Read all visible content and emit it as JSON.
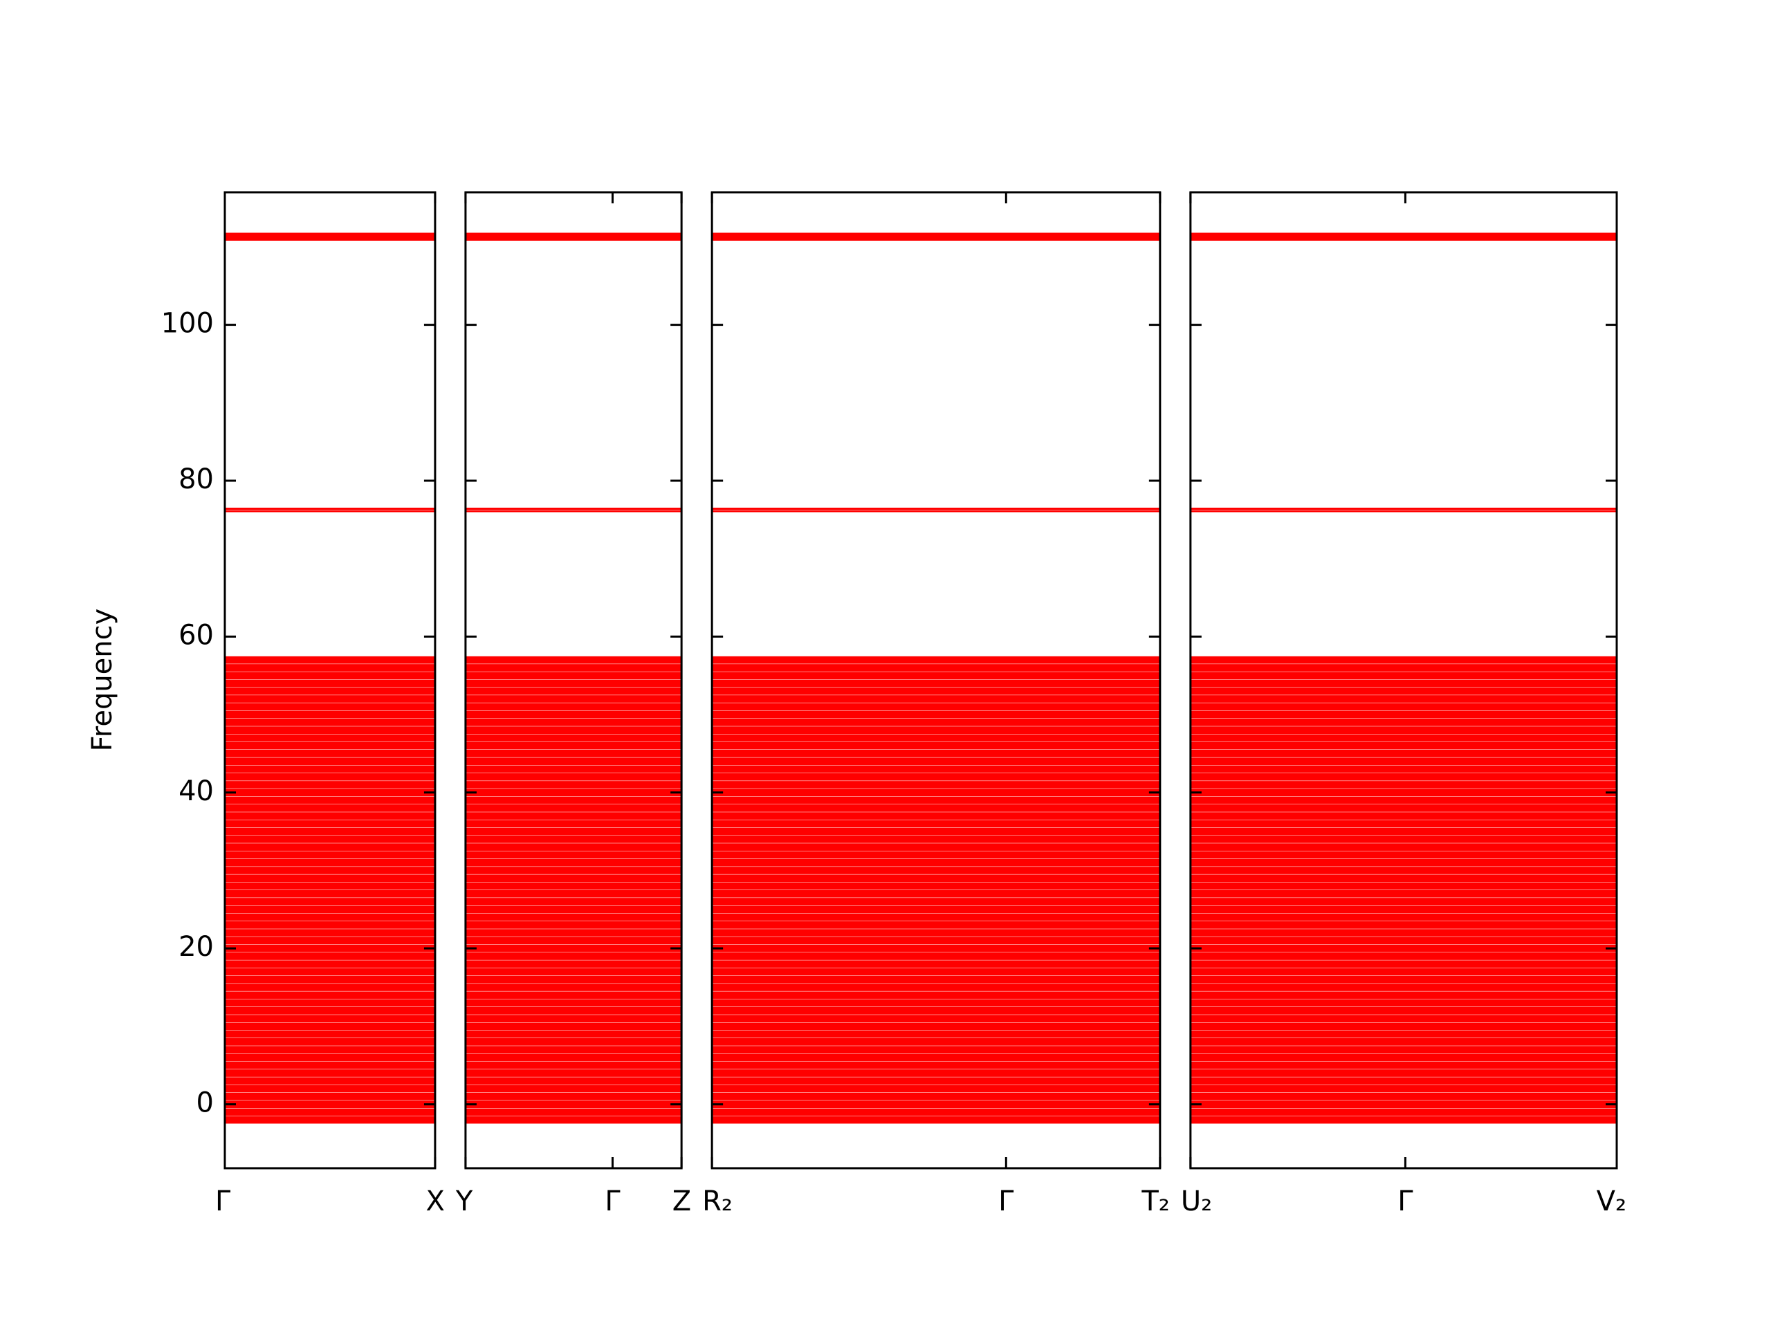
{
  "chart_data": {
    "type": "line",
    "ylabel": "Frequency",
    "color": "#ff0000",
    "ylim": [
      -8.2,
      117
    ],
    "yticks": [
      0,
      20,
      40,
      60,
      80,
      100
    ],
    "panels": [
      {
        "xlim": [
          0,
          1.83
        ],
        "xticks": [
          {
            "value": 0,
            "label": "Γ"
          },
          {
            "value": 1.83,
            "label": "X"
          }
        ]
      },
      {
        "xlim": [
          1.83,
          3.71
        ],
        "xticks": [
          {
            "value": 1.83,
            "label": "Y"
          },
          {
            "value": 3.11,
            "label": "Γ"
          },
          {
            "value": 3.71,
            "label": "Z"
          }
        ]
      },
      {
        "xlim": [
          3.71,
          7.61
        ],
        "xticks": [
          {
            "value": 3.71,
            "label": "R₂"
          },
          {
            "value": 6.27,
            "label": "Γ"
          },
          {
            "value": 7.61,
            "label": "T₂"
          }
        ]
      },
      {
        "xlim": [
          7.61,
          11.32
        ],
        "xticks": [
          {
            "value": 7.61,
            "label": "U₂"
          },
          {
            "value": 9.48,
            "label": "Γ"
          },
          {
            "value": 11.32,
            "label": "V₂"
          }
        ]
      }
    ],
    "bands": [
      -2,
      -1,
      0,
      1,
      2,
      3,
      4,
      5,
      6,
      7,
      8,
      9,
      10,
      11,
      12,
      13,
      14,
      15,
      16,
      17,
      18,
      19,
      20,
      21,
      22,
      23,
      24,
      25,
      26,
      27,
      28,
      29,
      30,
      31,
      32,
      33,
      34,
      35,
      36,
      37,
      38,
      39,
      40,
      41,
      42,
      43,
      44,
      45,
      46,
      47,
      48,
      49,
      50,
      51,
      52,
      53,
      54,
      55,
      56,
      57,
      76.1,
      76.4,
      111.3
    ]
  }
}
